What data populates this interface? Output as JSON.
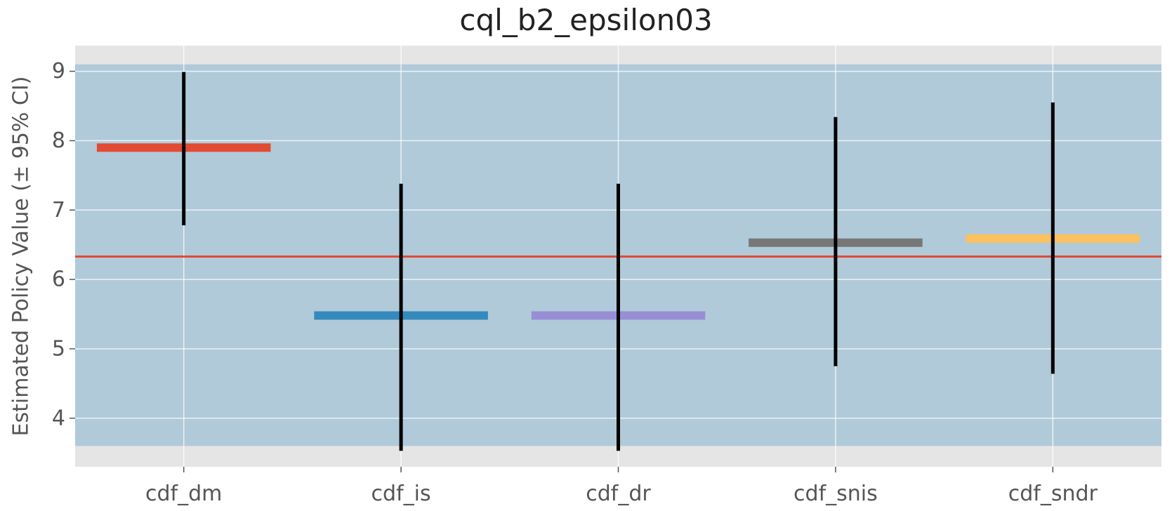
{
  "chart_data": {
    "type": "bar",
    "title": "cql_b2_epsilon03",
    "xlabel": "",
    "ylabel": "Estimated Policy Value (± 95% CI)",
    "categories": [
      "cdf_dm",
      "cdf_is",
      "cdf_dr",
      "cdf_snis",
      "cdf_sndr"
    ],
    "values": [
      7.9,
      5.48,
      5.48,
      6.53,
      6.59
    ],
    "ci_low": [
      6.78,
      3.53,
      3.53,
      4.75,
      4.64
    ],
    "ci_high": [
      8.99,
      7.38,
      7.38,
      8.34,
      8.55
    ],
    "colors": [
      "#E24A33",
      "#348ABD",
      "#988ED5",
      "#777777",
      "#FBC15E"
    ],
    "reference_line": {
      "value": 6.33,
      "color": "#E24A33"
    },
    "confidence_band": {
      "low": 3.6,
      "high": 9.1,
      "color": "#348ABD"
    },
    "ylim": [
      3.3,
      9.37
    ],
    "yticks": [
      4,
      5,
      6,
      7,
      8,
      9
    ],
    "grid": true,
    "style": "ggplot"
  }
}
